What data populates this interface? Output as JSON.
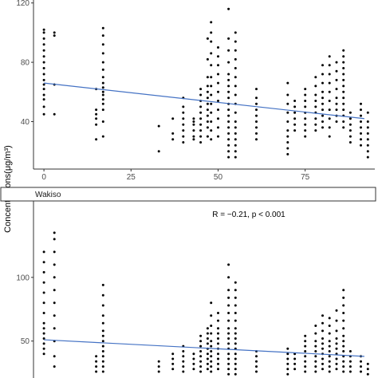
{
  "ylabel": "Concentrations(μg/m³)",
  "colors": {
    "trend": "#4472c4",
    "point": "#000000",
    "strip": "#ffffff",
    "axis": "#333333"
  },
  "chart_data": [
    {
      "type": "scatter",
      "panel": "top",
      "strip": "",
      "xlim": [
        -3,
        95
      ],
      "ylim": [
        8,
        122
      ],
      "xticks": [
        0,
        25,
        50,
        75
      ],
      "yticks": [
        40,
        80,
        120
      ],
      "trend": [
        [
          0,
          66
        ],
        [
          92,
          42
        ]
      ],
      "annotation": "",
      "columns": [
        {
          "x": 0,
          "y": [
            45,
            50,
            55,
            58,
            62,
            65,
            68,
            72,
            76,
            80,
            84,
            88,
            92,
            96,
            100,
            102
          ]
        },
        {
          "x": 3,
          "y": [
            45,
            65,
            98,
            100
          ]
        },
        {
          "x": 15,
          "y": [
            28,
            38,
            42,
            45,
            48,
            62
          ]
        },
        {
          "x": 17,
          "y": [
            30,
            40,
            48,
            52,
            55,
            58,
            60,
            63,
            66,
            70,
            75,
            80,
            86,
            92,
            98,
            103
          ]
        },
        {
          "x": 33,
          "y": [
            20,
            37
          ]
        },
        {
          "x": 37,
          "y": [
            28,
            32,
            42
          ]
        },
        {
          "x": 40,
          "y": [
            26,
            30,
            34,
            38,
            42,
            46,
            50,
            56
          ]
        },
        {
          "x": 43,
          "y": [
            28,
            30,
            34,
            38,
            40,
            42
          ]
        },
        {
          "x": 45,
          "y": [
            26,
            30,
            34,
            38,
            42,
            46,
            50,
            54,
            58,
            62
          ]
        },
        {
          "x": 47,
          "y": [
            30,
            36,
            40,
            44,
            48,
            52,
            56,
            60,
            64,
            70,
            82,
            96
          ]
        },
        {
          "x": 48,
          "y": [
            28,
            34,
            40,
            46,
            52,
            58,
            64,
            70,
            78,
            86,
            94,
            100,
            107
          ]
        },
        {
          "x": 50,
          "y": [
            30,
            36,
            42,
            48,
            54,
            60,
            66,
            72,
            78,
            84,
            90
          ]
        },
        {
          "x": 53,
          "y": [
            16,
            20,
            24,
            28,
            32,
            36,
            40,
            44,
            48,
            52,
            56,
            60,
            64,
            68,
            72,
            80,
            88,
            96,
            116
          ]
        },
        {
          "x": 55,
          "y": [
            16,
            20,
            24,
            28,
            32,
            36,
            40,
            46,
            52,
            58,
            64,
            70,
            76,
            82,
            88,
            94,
            100
          ]
        },
        {
          "x": 61,
          "y": [
            28,
            32,
            36,
            40,
            44,
            48,
            52,
            56,
            62
          ]
        },
        {
          "x": 70,
          "y": [
            18,
            22,
            26,
            30,
            34,
            40,
            46,
            52,
            58,
            66
          ]
        },
        {
          "x": 72,
          "y": [
            34,
            38,
            42,
            46,
            50,
            54
          ]
        },
        {
          "x": 75,
          "y": [
            30,
            34,
            38,
            42,
            46,
            50,
            54,
            58,
            62
          ]
        },
        {
          "x": 78,
          "y": [
            34,
            38,
            42,
            46,
            50,
            54,
            58,
            64,
            70
          ]
        },
        {
          "x": 80,
          "y": [
            36,
            40,
            44,
            48,
            52,
            56,
            60,
            66,
            72,
            78
          ]
        },
        {
          "x": 82,
          "y": [
            30,
            36,
            42,
            48,
            54,
            60,
            66,
            72,
            78,
            84
          ]
        },
        {
          "x": 84,
          "y": [
            40,
            44,
            48,
            52,
            56,
            62,
            68,
            74,
            80
          ]
        },
        {
          "x": 86,
          "y": [
            36,
            40,
            44,
            48,
            52,
            56,
            60,
            64,
            68,
            72,
            76,
            80,
            84,
            88
          ]
        },
        {
          "x": 88,
          "y": [
            26,
            30,
            34,
            38,
            42,
            46
          ]
        },
        {
          "x": 91,
          "y": [
            24,
            28,
            32,
            36,
            40,
            44,
            48,
            52
          ]
        },
        {
          "x": 93,
          "y": [
            16,
            20,
            24,
            28,
            32,
            36,
            40,
            46
          ]
        }
      ]
    },
    {
      "type": "scatter",
      "panel": "bottom",
      "strip": "Wakiso",
      "xlim": [
        -3,
        95
      ],
      "ylim": [
        21,
        160
      ],
      "xticks": [],
      "yticks": [
        50,
        100
      ],
      "trend": [
        [
          0,
          51
        ],
        [
          92,
          38
        ]
      ],
      "annotation": "R = −0.21, p < 0.001",
      "columns": [
        {
          "x": 0,
          "y": [
            40,
            44,
            48,
            52,
            56,
            60,
            64,
            72,
            80,
            88,
            96,
            104,
            112,
            120
          ]
        },
        {
          "x": 3,
          "y": [
            30,
            38,
            50,
            60,
            70,
            80,
            90,
            100,
            110,
            120,
            130,
            135
          ]
        },
        {
          "x": 15,
          "y": [
            26,
            30,
            34,
            38
          ]
        },
        {
          "x": 17,
          "y": [
            26,
            30,
            34,
            38,
            42,
            46,
            50,
            54,
            58,
            64,
            70,
            78,
            86,
            94
          ]
        },
        {
          "x": 33,
          "y": [
            26,
            30,
            34
          ]
        },
        {
          "x": 37,
          "y": [
            28,
            32,
            36,
            40
          ]
        },
        {
          "x": 40,
          "y": [
            26,
            30,
            34,
            38,
            42,
            46
          ]
        },
        {
          "x": 43,
          "y": [
            28,
            32,
            36,
            40
          ]
        },
        {
          "x": 45,
          "y": [
            26,
            30,
            34,
            38,
            42,
            46,
            50,
            54
          ]
        },
        {
          "x": 47,
          "y": [
            28,
            32,
            36,
            40,
            44,
            48,
            52,
            56,
            60
          ]
        },
        {
          "x": 48,
          "y": [
            26,
            30,
            34,
            38,
            42,
            46,
            50,
            56,
            62,
            70,
            80
          ]
        },
        {
          "x": 50,
          "y": [
            28,
            32,
            36,
            40,
            44,
            48,
            52,
            56,
            60,
            66,
            72
          ]
        },
        {
          "x": 53,
          "y": [
            24,
            28,
            32,
            36,
            40,
            44,
            48,
            52,
            56,
            60,
            66,
            72,
            78,
            84,
            90,
            100,
            110
          ]
        },
        {
          "x": 55,
          "y": [
            24,
            28,
            32,
            36,
            40,
            44,
            48,
            52,
            56,
            60,
            66,
            72,
            78,
            84,
            90,
            96
          ]
        },
        {
          "x": 61,
          "y": [
            26,
            30,
            34,
            38,
            42
          ]
        },
        {
          "x": 70,
          "y": [
            24,
            28,
            32,
            36,
            40,
            44
          ]
        },
        {
          "x": 72,
          "y": [
            28,
            32,
            36,
            40
          ]
        },
        {
          "x": 75,
          "y": [
            26,
            30,
            34,
            38,
            42,
            46,
            50,
            54
          ]
        },
        {
          "x": 78,
          "y": [
            26,
            30,
            34,
            38,
            42,
            46,
            50,
            56,
            62
          ]
        },
        {
          "x": 80,
          "y": [
            28,
            32,
            36,
            40,
            44,
            48,
            52,
            58,
            64,
            70
          ]
        },
        {
          "x": 82,
          "y": [
            26,
            30,
            34,
            38,
            42,
            46,
            50,
            56,
            62,
            68
          ]
        },
        {
          "x": 84,
          "y": [
            28,
            32,
            36,
            40,
            44,
            48,
            52,
            58,
            66,
            74
          ]
        },
        {
          "x": 86,
          "y": [
            26,
            30,
            34,
            38,
            42,
            46,
            50,
            54,
            60,
            66,
            72,
            78,
            84,
            90
          ]
        },
        {
          "x": 88,
          "y": [
            26,
            30,
            34,
            38,
            42
          ]
        },
        {
          "x": 91,
          "y": [
            26,
            30,
            34,
            38
          ]
        },
        {
          "x": 93,
          "y": [
            24,
            28,
            32
          ]
        }
      ]
    }
  ]
}
